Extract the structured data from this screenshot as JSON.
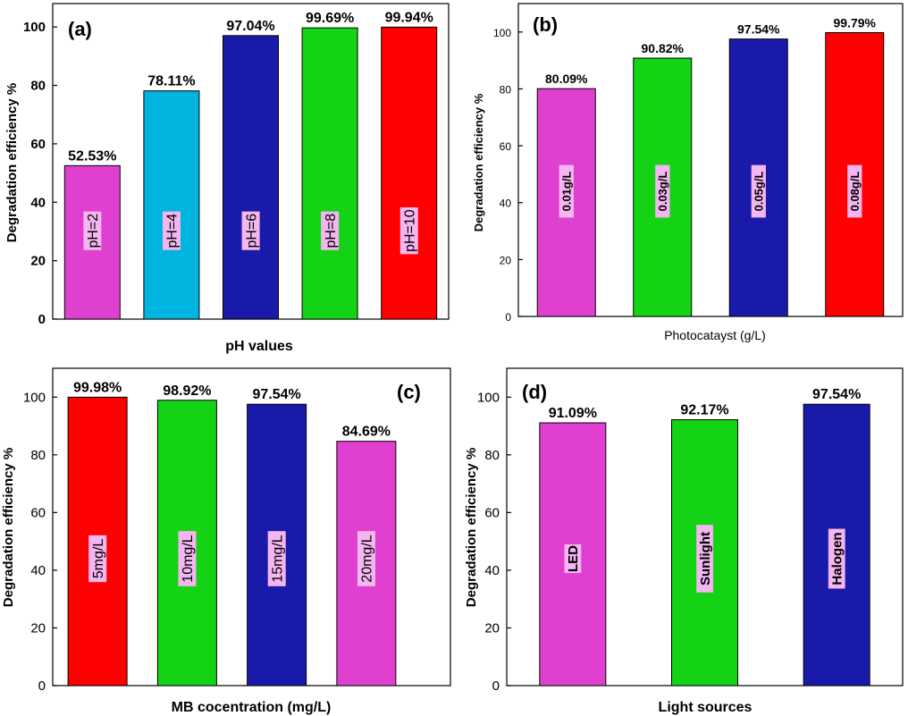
{
  "chart_data": [
    {
      "type": "bar",
      "panel_label": "(a)",
      "title": "",
      "xlabel": "pH values",
      "ylabel": "Degradation efficiency %",
      "ylim": [
        0,
        108
      ],
      "yticks": [
        "0",
        "20",
        "40",
        "60",
        "80",
        "100"
      ],
      "categories": [
        "pH=2",
        "pH=4",
        "pH=6",
        "pH=8",
        "pH=10"
      ],
      "values": [
        52.53,
        78.11,
        97.04,
        99.69,
        99.94
      ],
      "value_labels": [
        "52.53%",
        "78.11%",
        "97.04%",
        "99.69%",
        "99.94%"
      ],
      "colors": [
        "#e040d0",
        "#00b4e0",
        "#1a1aaa",
        "#14d214",
        "#ff0000"
      ]
    },
    {
      "type": "bar",
      "panel_label": "(b)",
      "title": "",
      "xlabel": "Photocatayst (g/L)",
      "ylabel": "Degradation efficiency %",
      "ylim": [
        0,
        110
      ],
      "yticks": [
        "0",
        "20",
        "40",
        "60",
        "80",
        "100"
      ],
      "categories": [
        "0.01g/L",
        "0.03g/L",
        "0.05g/L",
        "0.08g/L"
      ],
      "values": [
        80.09,
        90.82,
        97.54,
        99.79
      ],
      "value_labels": [
        "80.09%",
        "90.82%",
        "97.54%",
        "99.79%"
      ],
      "colors": [
        "#e040d0",
        "#14d214",
        "#1a1aaa",
        "#ff0000"
      ]
    },
    {
      "type": "bar",
      "panel_label": "(c)",
      "title": "",
      "xlabel": "MB cocentration (mg/L)",
      "ylabel": "Degradation efficiency %",
      "ylim": [
        0,
        110
      ],
      "yticks": [
        "0",
        "20",
        "40",
        "60",
        "80",
        "100"
      ],
      "categories": [
        "5mg/L",
        "10mg/L",
        "15mg/L",
        "20mg/L"
      ],
      "values": [
        99.98,
        98.92,
        97.54,
        84.69
      ],
      "value_labels": [
        "99.98%",
        "98.92%",
        "97.54%",
        "84.69%"
      ],
      "colors": [
        "#ff0000",
        "#14d214",
        "#1a1aaa",
        "#e040d0"
      ]
    },
    {
      "type": "bar",
      "panel_label": "(d)",
      "title": "",
      "xlabel": "Light sources",
      "ylabel": "Degradation efficiency %",
      "ylim": [
        0,
        110
      ],
      "yticks": [
        "0",
        "20",
        "40",
        "60",
        "80",
        "100"
      ],
      "categories": [
        "LED",
        "Sunlight",
        "Halogen"
      ],
      "values": [
        91.09,
        92.17,
        97.54
      ],
      "value_labels": [
        "91.09%",
        "92.17%",
        "97.54%"
      ],
      "colors": [
        "#e040d0",
        "#14d214",
        "#1a1aaa"
      ]
    }
  ],
  "category_label_style": {
    "box_color": "#f4b6f0"
  }
}
